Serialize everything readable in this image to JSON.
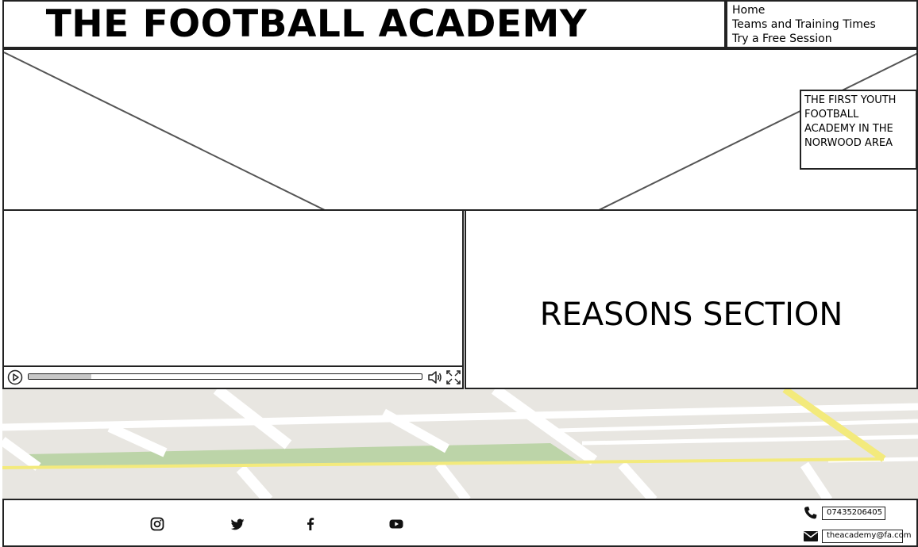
{
  "header": {
    "title": "THE FOOTBALL ACADEMY",
    "nav": [
      "Home",
      "Teams and Training Times",
      "Try a Free Session"
    ]
  },
  "hero": {
    "tagline": "THE FIRST YOUTH FOOTBALL ACADEMY IN THE NORWOOD AREA"
  },
  "video": {
    "progress": 0.16,
    "icons": [
      "play-icon",
      "volume-icon",
      "fullscreen-icon"
    ]
  },
  "reasons": {
    "title": "REASONS SECTION"
  },
  "footer": {
    "social": [
      "instagram-icon",
      "twitter-icon",
      "facebook-icon",
      "youtube-icon"
    ],
    "phone": "07435206405",
    "email": "theacademy@fa.com"
  },
  "colors": {
    "map_background": "#e8e6e1",
    "map_road": "#ffffff",
    "map_major_road": "#f3ea7c",
    "map_park": "#bcd4a8",
    "border": "#222222"
  }
}
